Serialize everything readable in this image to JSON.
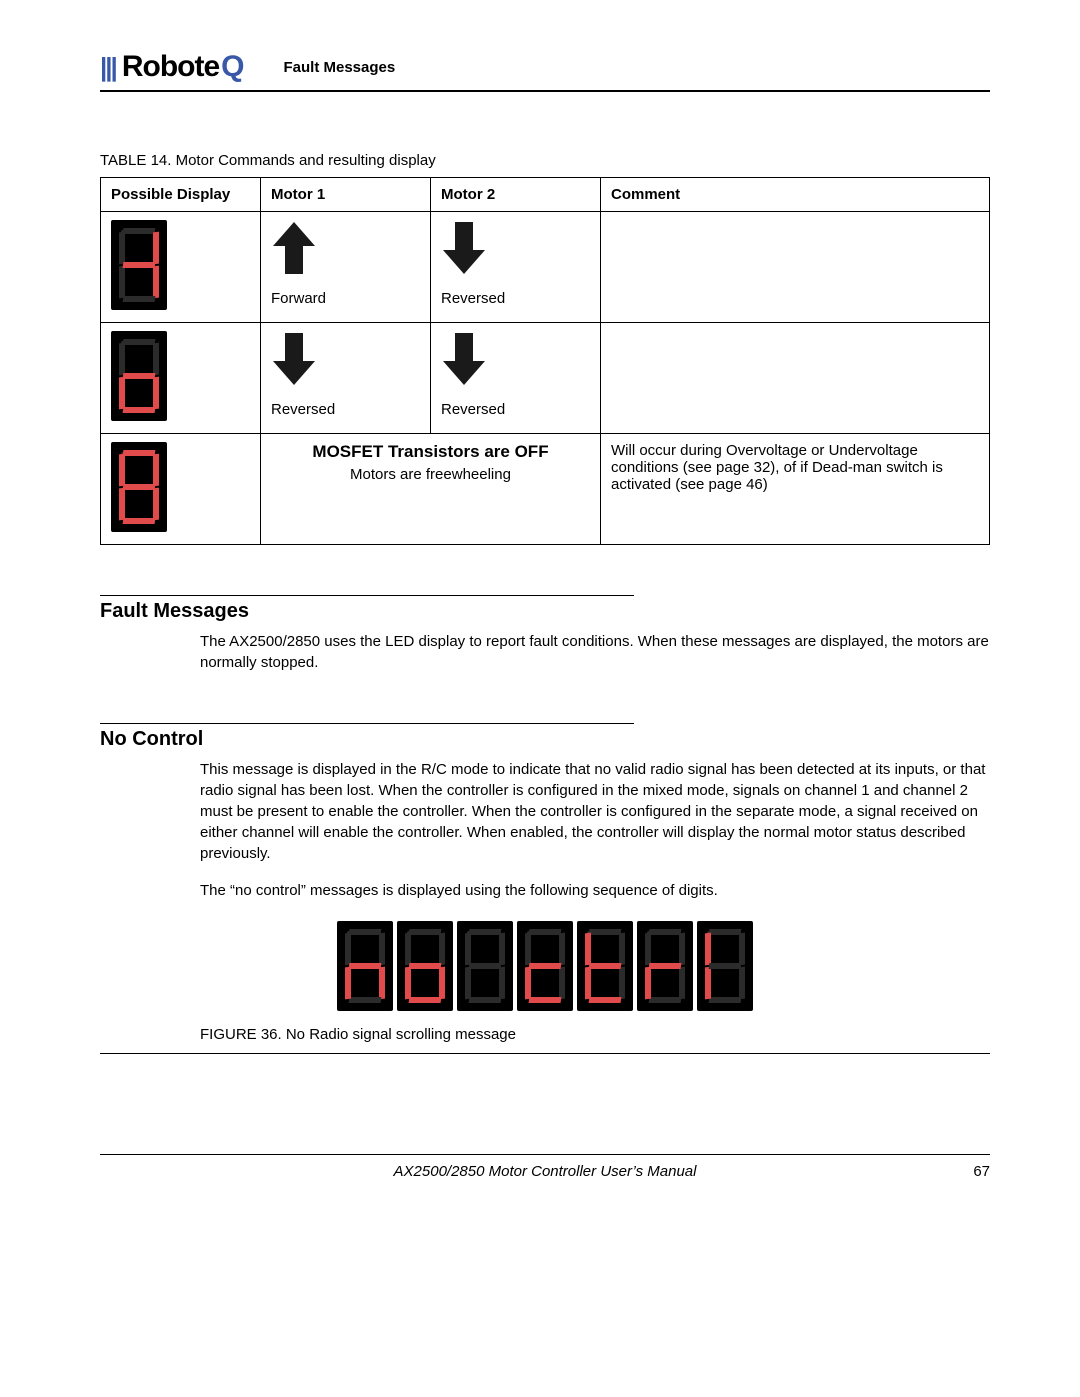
{
  "header": {
    "logo_bars": "|||",
    "logo_part1": "Robote",
    "logo_part2": "Q",
    "section": "Fault Messages"
  },
  "table": {
    "caption": "TABLE 14. Motor Commands and resulting display",
    "headers": [
      "Possible Display",
      "Motor 1",
      "Motor 2",
      "Comment"
    ],
    "rows": [
      {
        "seg_on": [
          "b",
          "c",
          "g"
        ],
        "motor1": {
          "dir": "up",
          "label": "Forward"
        },
        "motor2": {
          "dir": "down",
          "label": "Reversed"
        },
        "comment": ""
      },
      {
        "seg_on": [
          "c",
          "d",
          "e",
          "g"
        ],
        "motor1": {
          "dir": "down",
          "label": "Reversed"
        },
        "motor2": {
          "dir": "down",
          "label": "Reversed"
        },
        "comment": ""
      },
      {
        "seg_on": [
          "a",
          "b",
          "c",
          "d",
          "e",
          "f",
          "g"
        ],
        "mosfet_title": "MOSFET Transistors are OFF",
        "mosfet_sub": "Motors are freewheeling",
        "comment": "Will occur during Overvoltage or Undervoltage conditions (see page 32), of if Dead-man switch is activated (see page 46)"
      }
    ]
  },
  "sections": {
    "fault_title": "Fault Messages",
    "fault_body": "The AX2500/2850 uses the LED display to report fault conditions. When these messages are displayed, the motors are normally stopped.",
    "noctrl_title": "No Control",
    "noctrl_p1": "This message is displayed in the R/C mode to indicate that no valid radio signal has been detected at its inputs, or that radio signal has been lost. When the controller is configured in the mixed mode, signals on channel 1 and channel 2 must be present to enable the controller. When the controller is configured in the separate mode, a signal received on either channel will enable the controller. When enabled, the controller will display the normal motor status described previously.",
    "noctrl_p2": "The “no control” messages is displayed using the following sequence of digits."
  },
  "figure": {
    "digits": [
      {
        "on": [
          "c",
          "e",
          "g"
        ]
      },
      {
        "on": [
          "c",
          "d",
          "e",
          "g"
        ]
      },
      {
        "on": []
      },
      {
        "on": [
          "d",
          "e",
          "g"
        ]
      },
      {
        "on": [
          "d",
          "e",
          "f",
          "g"
        ]
      },
      {
        "on": [
          "e",
          "g"
        ]
      },
      {
        "on": [
          "e",
          "f"
        ]
      }
    ],
    "caption": "FIGURE 36.  No Radio signal scrolling message"
  },
  "footer": {
    "title": "AX2500/2850 Motor Controller User’s Manual",
    "page": "67"
  },
  "colors": {
    "seg_on": "#e24b4b",
    "seg_off": "#2b2b2b",
    "seg_bg": "#000000",
    "logo_blue": "#3959a8",
    "arrow": "#1a1a1a"
  }
}
